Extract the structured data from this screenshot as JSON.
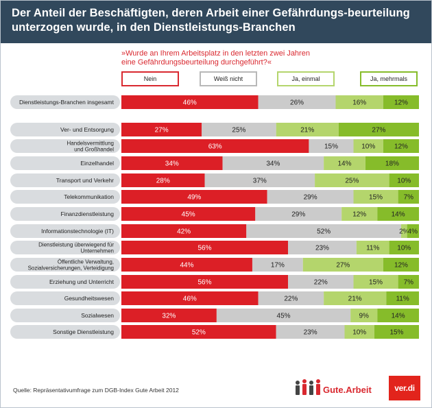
{
  "title": "Der Anteil der Beschäftigten, deren Arbeit einer Gefährdungs-beurteilung unterzogen wurde, in den Dienstleistungs-Branchen",
  "question": "»Wurde an Ihrem Arbeitsplatz in den letzten zwei Jahren eine Gefährdungsbeurteilung durchgeführt?«",
  "source": "Quelle: Repräsentativumfrage zum DGB-Index Gute Arbeit 2012",
  "logos": {
    "gute_arbeit": "Gute.Arbeit",
    "verdi": "ver.di"
  },
  "colors": {
    "nein": "#dc1f26",
    "weiss_nicht": "#cbcbcb",
    "ja_einmal": "#b4d56c",
    "ja_mehrmals": "#86bc2a",
    "label_bg": "#d9dcdf",
    "header_bg": "#31485c"
  },
  "chart_data": {
    "type": "bar",
    "orientation": "horizontal",
    "stacked": true,
    "unit": "%",
    "series": [
      {
        "name": "Nein",
        "color": "#dc1f26",
        "values": [
          46,
          27,
          63,
          34,
          28,
          49,
          45,
          42,
          56,
          44,
          56,
          46,
          32,
          52
        ]
      },
      {
        "name": "Weiß nicht",
        "color": "#cbcbcb",
        "values": [
          26,
          25,
          15,
          34,
          37,
          29,
          29,
          52,
          23,
          17,
          22,
          22,
          45,
          23
        ]
      },
      {
        "name": "Ja, einmal",
        "color": "#b4d56c",
        "values": [
          16,
          21,
          10,
          14,
          25,
          15,
          12,
          2,
          11,
          27,
          15,
          21,
          9,
          10
        ]
      },
      {
        "name": "Ja, mehrmals",
        "color": "#86bc2a",
        "values": [
          12,
          27,
          12,
          18,
          10,
          7,
          14,
          4,
          10,
          12,
          7,
          11,
          14,
          15
        ]
      }
    ],
    "categories": [
      "Dienstleistungs-Branchen insgesamt",
      "Ver- und Entsorgung",
      "Handelsvermittlung und Großhandel",
      "Einzelhandel",
      "Transport und Verkehr",
      "Telekommunikation",
      "Finanzdienstleistung",
      "Informationstechnologie (IT)",
      "Dienstleistung überwiegend für Unternehmen",
      "Öffentliche Verwaltung, Sozialversicherungen, Verteidigung",
      "Erziehung und Unterricht",
      "Gesundheitswesen",
      "Sozialwesen",
      "Sonstige Dienstleistung"
    ],
    "category_lines": [
      [
        "Dienstleistungs-Branchen insgesamt"
      ],
      [
        "Ver- und Entsorgung"
      ],
      [
        "Handelsvermittlung",
        "und Großhandel"
      ],
      [
        "Einzelhandel"
      ],
      [
        "Transport und Verkehr"
      ],
      [
        "Telekommunikation"
      ],
      [
        "Finanzdienstleistung"
      ],
      [
        "Informationstechnologie (IT)"
      ],
      [
        "Dienstleistung überwiegend für",
        "Unternehmen"
      ],
      [
        "Öffentliche Verwaltung,",
        "Sozialversicherungen, Verteidigung"
      ],
      [
        "Erziehung und Unterricht"
      ],
      [
        "Gesundheitswesen"
      ],
      [
        "Sozialwesen"
      ],
      [
        "Sonstige Dienstleistung"
      ]
    ],
    "xlim": [
      0,
      100
    ],
    "legend": "top"
  }
}
